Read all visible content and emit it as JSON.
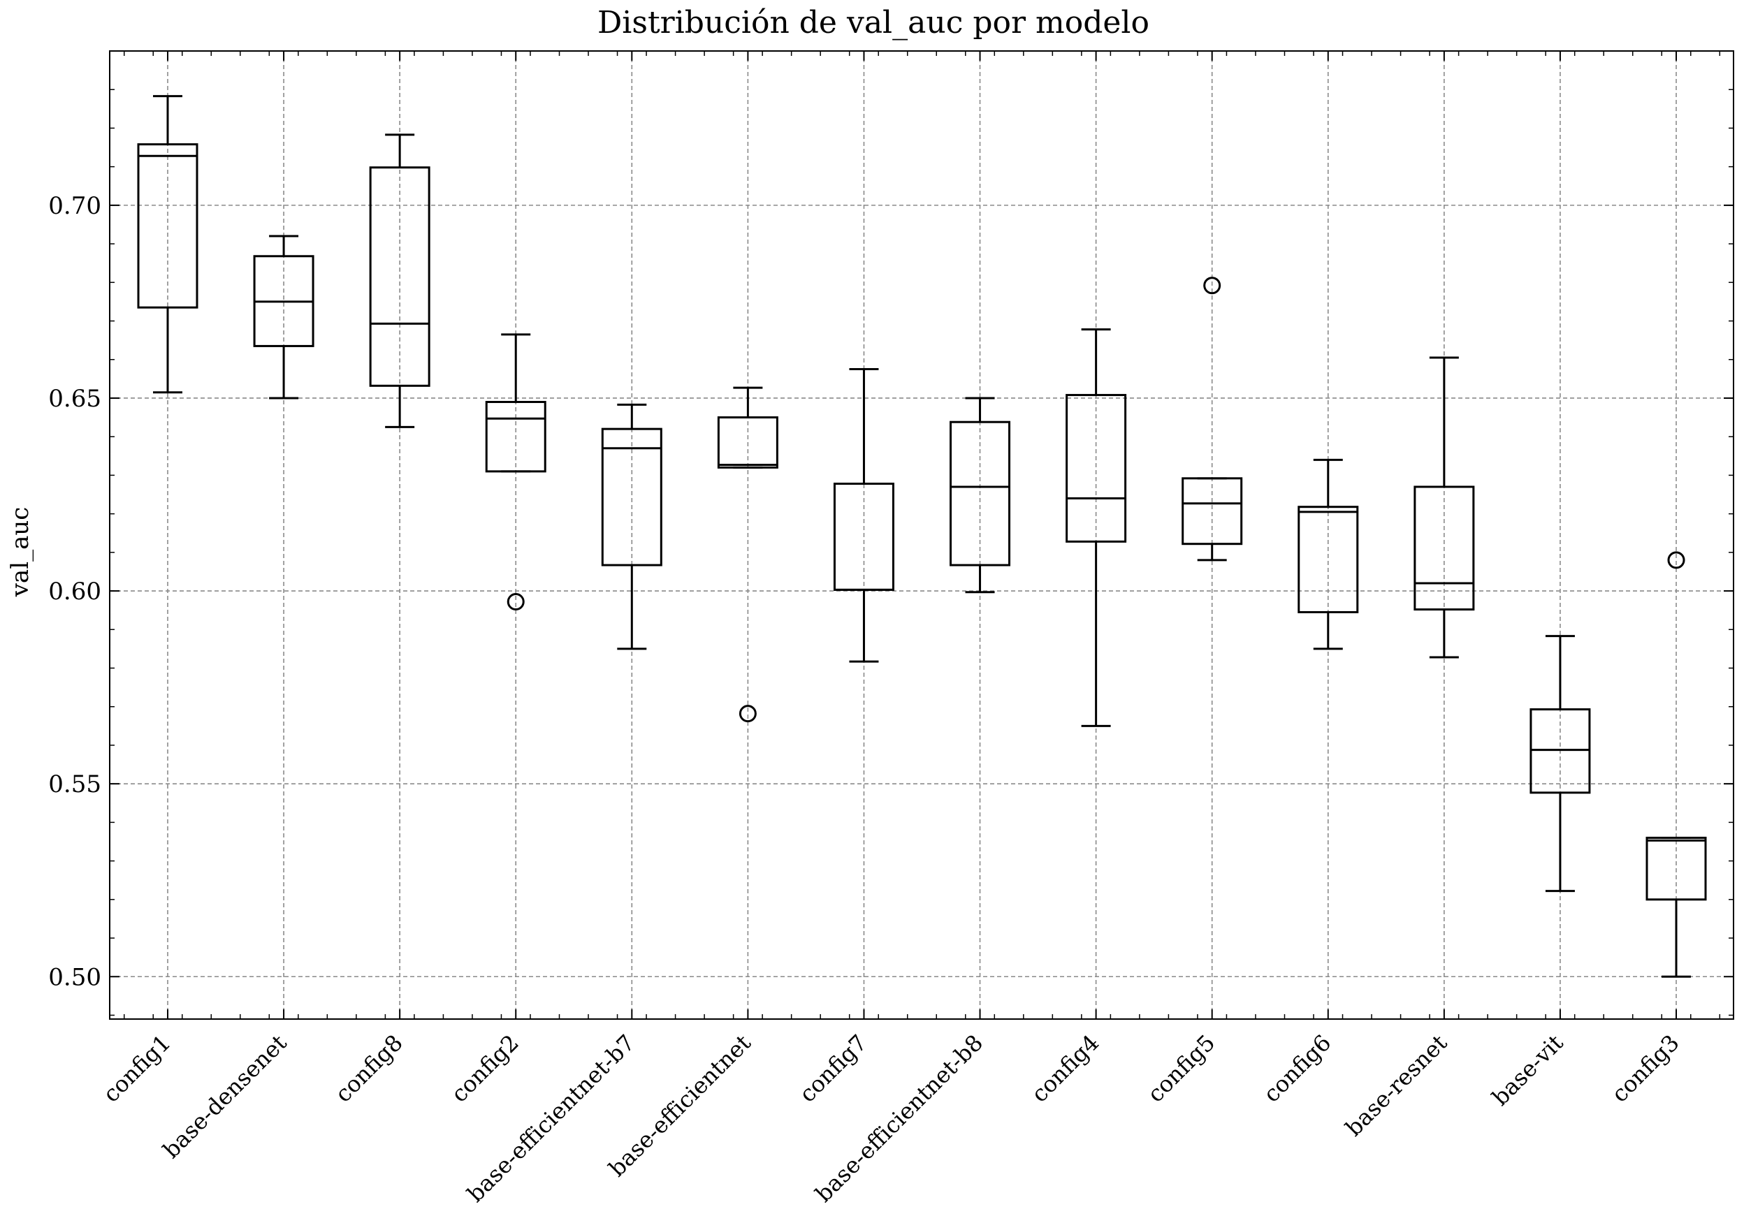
{
  "chart_data": {
    "type": "box",
    "title": "Distribución de val_auc por modelo",
    "xlabel": "",
    "ylabel": "val_auc",
    "ylim": [
      0.489,
      0.74
    ],
    "yticks": [
      "0.50",
      "0.55",
      "0.60",
      "0.65",
      "0.70"
    ],
    "ytick_values": [
      0.5,
      0.55,
      0.6,
      0.65,
      0.7
    ],
    "grid": true,
    "categories": [
      "config1",
      "base-densenet",
      "config8",
      "config2",
      "base-efficientnet-b7",
      "base-efficientnet",
      "config7",
      "base-efficientnet-b8",
      "config4",
      "config5",
      "config6",
      "base-resnet",
      "base-vit",
      "config3"
    ],
    "boxes": [
      {
        "name": "config1",
        "whisker_low": 0.6515,
        "q1": 0.6735,
        "median": 0.7128,
        "q3": 0.7158,
        "whisker_high": 0.7283,
        "outliers": []
      },
      {
        "name": "base-densenet",
        "whisker_low": 0.65,
        "q1": 0.6635,
        "median": 0.675,
        "q3": 0.6868,
        "whisker_high": 0.692,
        "outliers": []
      },
      {
        "name": "config8",
        "whisker_low": 0.6425,
        "q1": 0.6532,
        "median": 0.6693,
        "q3": 0.7098,
        "whisker_high": 0.7183,
        "outliers": []
      },
      {
        "name": "config2",
        "whisker_low": 0.631,
        "q1": 0.631,
        "median": 0.6447,
        "q3": 0.649,
        "whisker_high": 0.6665,
        "outliers": [
          0.5972
        ]
      },
      {
        "name": "base-efficientnet-b7",
        "whisker_low": 0.585,
        "q1": 0.6067,
        "median": 0.637,
        "q3": 0.642,
        "whisker_high": 0.6483,
        "outliers": []
      },
      {
        "name": "base-efficientnet",
        "whisker_low": 0.632,
        "q1": 0.632,
        "median": 0.6327,
        "q3": 0.645,
        "whisker_high": 0.6527,
        "outliers": [
          0.5682
        ]
      },
      {
        "name": "config7",
        "whisker_low": 0.5817,
        "q1": 0.6003,
        "median": 0.6003,
        "q3": 0.6278,
        "whisker_high": 0.6575,
        "outliers": []
      },
      {
        "name": "base-efficientnet-b8",
        "whisker_low": 0.5997,
        "q1": 0.6067,
        "median": 0.627,
        "q3": 0.6438,
        "whisker_high": 0.65,
        "outliers": []
      },
      {
        "name": "config4",
        "whisker_low": 0.565,
        "q1": 0.6128,
        "median": 0.624,
        "q3": 0.6508,
        "whisker_high": 0.6678,
        "outliers": []
      },
      {
        "name": "config5",
        "whisker_low": 0.608,
        "q1": 0.6122,
        "median": 0.6227,
        "q3": 0.6292,
        "whisker_high": 0.6292,
        "outliers": [
          0.6792
        ]
      },
      {
        "name": "config6",
        "whisker_low": 0.585,
        "q1": 0.5945,
        "median": 0.6205,
        "q3": 0.6218,
        "whisker_high": 0.634,
        "outliers": []
      },
      {
        "name": "base-resnet",
        "whisker_low": 0.5828,
        "q1": 0.5952,
        "median": 0.602,
        "q3": 0.627,
        "whisker_high": 0.6605,
        "outliers": []
      },
      {
        "name": "base-vit",
        "whisker_low": 0.5222,
        "q1": 0.5477,
        "median": 0.5588,
        "q3": 0.5693,
        "whisker_high": 0.5883,
        "outliers": []
      },
      {
        "name": "config3",
        "whisker_low": 0.5,
        "q1": 0.52,
        "median": 0.5353,
        "q3": 0.536,
        "whisker_high": 0.536,
        "outliers": [
          0.608
        ]
      }
    ]
  }
}
